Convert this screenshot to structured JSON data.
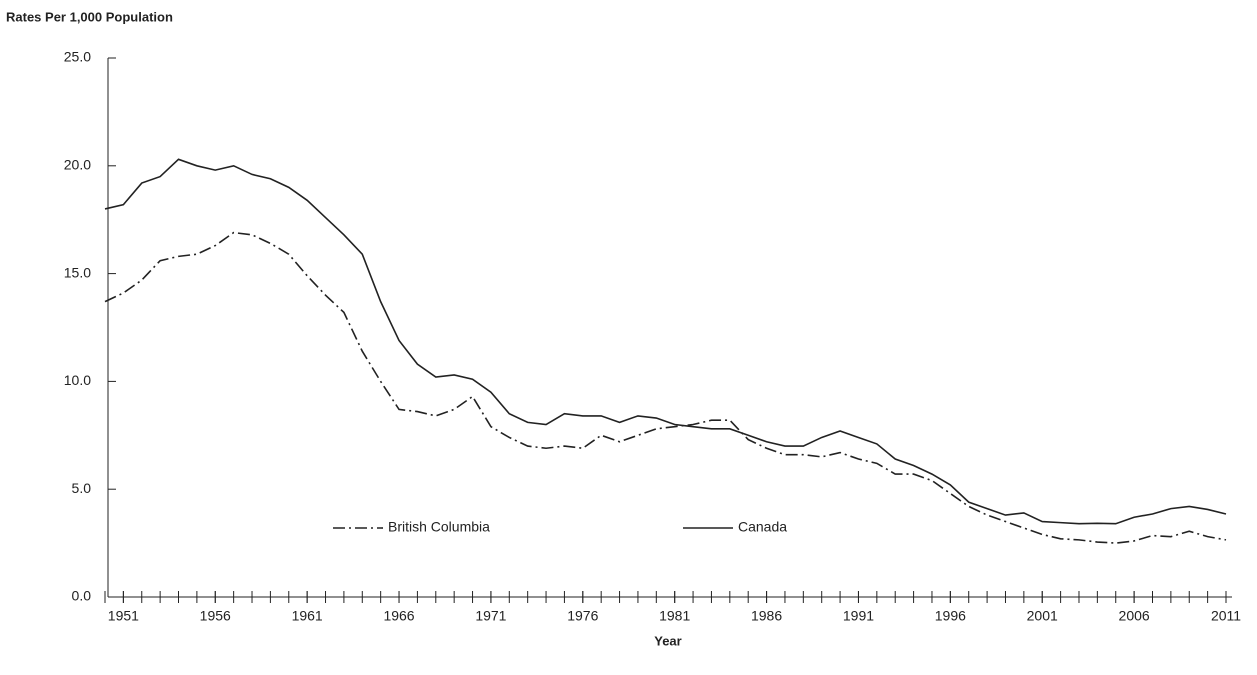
{
  "chart_data": {
    "type": "line",
    "y_label": "Rates Per 1,000 Population",
    "x_label": "Year",
    "x": [
      1950,
      1951,
      1952,
      1953,
      1954,
      1955,
      1956,
      1957,
      1958,
      1959,
      1960,
      1961,
      1962,
      1963,
      1964,
      1965,
      1966,
      1967,
      1968,
      1969,
      1970,
      1971,
      1972,
      1973,
      1974,
      1975,
      1976,
      1977,
      1978,
      1979,
      1980,
      1981,
      1982,
      1983,
      1984,
      1985,
      1986,
      1987,
      1988,
      1989,
      1990,
      1991,
      1992,
      1993,
      1994,
      1995,
      1996,
      1997,
      1998,
      1999,
      2000,
      2001,
      2002,
      2003,
      2004,
      2005,
      2006,
      2007,
      2008,
      2009,
      2010,
      2011
    ],
    "series": [
      {
        "name": "British Columbia",
        "color": "#222222",
        "dash": "dash-dot",
        "values": [
          13.7,
          14.1,
          14.7,
          15.6,
          15.8,
          15.9,
          16.3,
          16.9,
          16.8,
          16.4,
          15.9,
          14.9,
          14.0,
          13.2,
          11.4,
          10.0,
          8.7,
          8.6,
          8.4,
          8.7,
          9.3,
          7.9,
          7.4,
          7.0,
          6.9,
          7.0,
          6.9,
          7.5,
          7.2,
          7.5,
          7.8,
          7.9,
          8.0,
          8.2,
          8.2,
          7.3,
          6.9,
          6.6,
          6.6,
          6.5,
          6.7,
          6.4,
          6.2,
          5.7,
          5.7,
          5.4,
          4.8,
          4.2,
          3.8,
          3.5,
          3.2,
          2.9,
          2.7,
          2.65,
          2.55,
          2.5,
          2.6,
          2.85,
          2.8,
          3.05,
          2.8,
          2.65
        ]
      },
      {
        "name": "Canada",
        "color": "#222222",
        "dash": "solid",
        "values": [
          18.0,
          18.2,
          19.2,
          19.5,
          20.3,
          20.0,
          19.8,
          20.0,
          19.6,
          19.4,
          19.0,
          18.4,
          17.6,
          16.8,
          15.9,
          13.7,
          11.9,
          10.8,
          10.2,
          10.3,
          10.1,
          9.5,
          8.5,
          8.1,
          8.0,
          8.5,
          8.4,
          8.4,
          8.1,
          8.4,
          8.3,
          8.0,
          7.9,
          7.8,
          7.8,
          7.5,
          7.2,
          7.0,
          7.0,
          7.4,
          7.7,
          7.4,
          7.1,
          6.4,
          6.1,
          5.7,
          5.2,
          4.4,
          4.1,
          3.8,
          3.9,
          3.5,
          3.45,
          3.4,
          3.42,
          3.4,
          3.7,
          3.85,
          4.1,
          4.2,
          4.06,
          3.85
        ]
      }
    ],
    "xlim": [
      1950,
      2011
    ],
    "xticks": [
      1951,
      1956,
      1961,
      1966,
      1971,
      1976,
      1981,
      1986,
      1991,
      1996,
      2001,
      2006,
      2011
    ],
    "ylim": [
      0,
      25
    ],
    "yticks": [
      {
        "value": 0,
        "label": "0.0"
      },
      {
        "value": 5,
        "label": "5.0"
      },
      {
        "value": 10,
        "label": "10.0"
      },
      {
        "value": 15,
        "label": "15.0"
      },
      {
        "value": 20,
        "label": "20.0"
      },
      {
        "value": 25,
        "label": "25.0"
      }
    ],
    "grid": false
  }
}
